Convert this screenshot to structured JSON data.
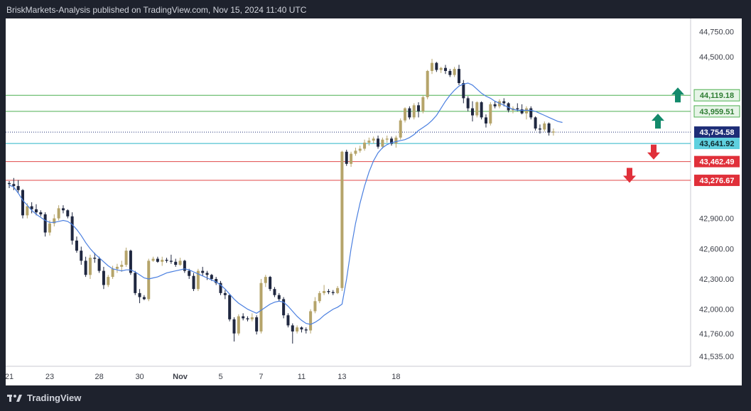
{
  "header": {
    "publisher_line": "BriskMarkets-Analysis published on TradingView.com, Nov 15, 2024 11:40 UTC"
  },
  "footer": {
    "brand": "TradingView"
  },
  "colors": {
    "background_outer": "#1e222d",
    "candle_up": "#b5a46a",
    "candle_down": "#1f2740",
    "moving_average": "#4a7fe0",
    "resistance": "#4caf50",
    "support": "#e04848",
    "current_price": "#1d2d77",
    "bid_level": "#29b5c8",
    "arrow_up": "#138a6b",
    "arrow_down": "#e0303a"
  },
  "chart_data": {
    "type": "candlestick",
    "title": "",
    "xlabel": "",
    "ylabel": "",
    "ylim": [
      41435,
      44880
    ],
    "y_ticks": [
      "44,750.00",
      "44,500.00",
      "42,900.00",
      "42,600.00",
      "42,300.00",
      "42,000.00",
      "41,760.00",
      "41,535.00"
    ],
    "y_tick_values": [
      44750,
      44500,
      42900,
      42600,
      42300,
      42000,
      41760,
      41535
    ],
    "x_ticks": [
      "21",
      "23",
      "28",
      "30",
      "Nov",
      "5",
      "7",
      "11",
      "13",
      "18"
    ],
    "x_tick_positions": [
      0,
      9,
      20,
      29,
      38,
      47,
      56,
      65,
      74,
      86
    ],
    "ohlc": [
      [
        43250,
        43270,
        43200,
        43240
      ],
      [
        43240,
        43300,
        43180,
        43220
      ],
      [
        43220,
        43280,
        43150,
        43180
      ],
      [
        43180,
        43190,
        42900,
        42930
      ],
      [
        42930,
        43050,
        42900,
        43020
      ],
      [
        43020,
        43060,
        42950,
        42990
      ],
      [
        42990,
        43040,
        42930,
        42960
      ],
      [
        42960,
        42980,
        42920,
        42940
      ],
      [
        42940,
        42960,
        42720,
        42760
      ],
      [
        42760,
        42880,
        42730,
        42850
      ],
      [
        42850,
        42940,
        42820,
        42900
      ],
      [
        42900,
        43030,
        42880,
        43000
      ],
      [
        43000,
        43030,
        42950,
        42980
      ],
      [
        42980,
        42990,
        42900,
        42920
      ],
      [
        42920,
        42960,
        42640,
        42680
      ],
      [
        42680,
        42720,
        42560,
        42580
      ],
      [
        42580,
        42620,
        42440,
        42480
      ],
      [
        42480,
        42520,
        42320,
        42340
      ],
      [
        42340,
        42540,
        42300,
        42510
      ],
      [
        42510,
        42560,
        42460,
        42500
      ],
      [
        42500,
        42520,
        42360,
        42380
      ],
      [
        42380,
        42420,
        42200,
        42240
      ],
      [
        42240,
        42340,
        42220,
        42320
      ],
      [
        42320,
        42430,
        42300,
        42400
      ],
      [
        42400,
        42450,
        42360,
        42420
      ],
      [
        42420,
        42480,
        42370,
        42440
      ],
      [
        42440,
        42610,
        42420,
        42580
      ],
      [
        42580,
        42590,
        42340,
        42360
      ],
      [
        42360,
        42380,
        42140,
        42160
      ],
      [
        42160,
        42200,
        42060,
        42120
      ],
      [
        42120,
        42140,
        42090,
        42100
      ],
      [
        42100,
        42500,
        42080,
        42480
      ],
      [
        42480,
        42520,
        42470,
        42500
      ],
      [
        42500,
        42520,
        42460,
        42470
      ],
      [
        42470,
        42520,
        42430,
        42490
      ],
      [
        42490,
        42510,
        42460,
        42480
      ],
      [
        42480,
        42540,
        42450,
        42470
      ],
      [
        42470,
        42500,
        42420,
        42440
      ],
      [
        42440,
        42510,
        42430,
        42480
      ],
      [
        42480,
        42490,
        42360,
        42380
      ],
      [
        42380,
        42400,
        42300,
        42330
      ],
      [
        42330,
        42360,
        42180,
        42200
      ],
      [
        42200,
        42400,
        42180,
        42380
      ],
      [
        42380,
        42420,
        42330,
        42360
      ],
      [
        42360,
        42380,
        42290,
        42340
      ],
      [
        42340,
        42350,
        42280,
        42300
      ],
      [
        42300,
        42320,
        42240,
        42260
      ],
      [
        42260,
        42280,
        42140,
        42160
      ],
      [
        42160,
        42190,
        42100,
        42140
      ],
      [
        42140,
        42150,
        41880,
        41900
      ],
      [
        41900,
        41920,
        41680,
        41760
      ],
      [
        41760,
        41950,
        41740,
        41930
      ],
      [
        41930,
        41960,
        41890,
        41910
      ],
      [
        41910,
        41930,
        41880,
        41900
      ],
      [
        41900,
        41960,
        41880,
        41920
      ],
      [
        41920,
        41940,
        41750,
        41780
      ],
      [
        41780,
        42300,
        41760,
        42260
      ],
      [
        42260,
        42340,
        42220,
        42320
      ],
      [
        42320,
        42330,
        42180,
        42200
      ],
      [
        42200,
        42220,
        42120,
        42140
      ],
      [
        42140,
        42160,
        42080,
        42100
      ],
      [
        42100,
        42120,
        41910,
        41940
      ],
      [
        41940,
        41960,
        41820,
        41840
      ],
      [
        41840,
        41860,
        41660,
        41780
      ],
      [
        41780,
        41840,
        41760,
        41820
      ],
      [
        41820,
        41830,
        41770,
        41800
      ],
      [
        41800,
        41820,
        41760,
        41790
      ],
      [
        41790,
        42000,
        41760,
        41980
      ],
      [
        41980,
        42120,
        41960,
        42080
      ],
      [
        42080,
        42180,
        42060,
        42160
      ],
      [
        42160,
        42240,
        42140,
        42180
      ],
      [
        42180,
        42200,
        42150,
        42170
      ],
      [
        42170,
        42190,
        42140,
        42160
      ],
      [
        42160,
        42230,
        42150,
        42210
      ],
      [
        42210,
        43570,
        42180,
        43560
      ],
      [
        43560,
        43580,
        43420,
        43440
      ],
      [
        43440,
        43560,
        43410,
        43540
      ],
      [
        43540,
        43600,
        43520,
        43570
      ],
      [
        43570,
        43620,
        43550,
        43590
      ],
      [
        43590,
        43680,
        43570,
        43650
      ],
      [
        43650,
        43700,
        43620,
        43670
      ],
      [
        43670,
        43710,
        43640,
        43690
      ],
      [
        43690,
        43720,
        43590,
        43610
      ],
      [
        43610,
        43700,
        43590,
        43680
      ],
      [
        43680,
        43720,
        43650,
        43690
      ],
      [
        43690,
        43710,
        43620,
        43640
      ],
      [
        43640,
        43720,
        43600,
        43700
      ],
      [
        43700,
        43890,
        43680,
        43870
      ],
      [
        43870,
        44000,
        43850,
        43990
      ],
      [
        43990,
        44010,
        43880,
        43900
      ],
      [
        43900,
        44040,
        43880,
        44020
      ],
      [
        44020,
        44050,
        43900,
        43960
      ],
      [
        43960,
        44120,
        43940,
        44100
      ],
      [
        44100,
        44370,
        44080,
        44360
      ],
      [
        44360,
        44480,
        44330,
        44440
      ],
      [
        44440,
        44450,
        44350,
        44370
      ],
      [
        44370,
        44400,
        44340,
        44390
      ],
      [
        44390,
        44420,
        44330,
        44360
      ],
      [
        44360,
        44380,
        44300,
        44320
      ],
      [
        44320,
        44400,
        44300,
        44380
      ],
      [
        44380,
        44420,
        44220,
        44240
      ],
      [
        44240,
        44270,
        44040,
        44090
      ],
      [
        44090,
        44110,
        43960,
        43990
      ],
      [
        43990,
        44060,
        43860,
        43920
      ],
      [
        43920,
        44060,
        43900,
        44050
      ],
      [
        44050,
        44060,
        43880,
        43900
      ],
      [
        43900,
        43930,
        43800,
        43840
      ],
      [
        43840,
        44050,
        43820,
        44030
      ],
      [
        44030,
        44060,
        43990,
        44010
      ],
      [
        44010,
        44080,
        43990,
        44060
      ],
      [
        44060,
        44090,
        44010,
        44040
      ],
      [
        44040,
        44050,
        43950,
        43970
      ],
      [
        43970,
        44010,
        43940,
        43990
      ],
      [
        43990,
        44040,
        43960,
        43980
      ],
      [
        43980,
        44030,
        43930,
        43940
      ],
      [
        43940,
        44010,
        43880,
        43990
      ],
      [
        43990,
        44010,
        43880,
        43900
      ],
      [
        43900,
        43910,
        43770,
        43790
      ],
      [
        43790,
        43830,
        43740,
        43780
      ],
      [
        43780,
        43860,
        43760,
        43840
      ],
      [
        43840,
        43850,
        43720,
        43750
      ],
      [
        43750,
        43790,
        43720,
        43760
      ]
    ],
    "moving_average": [
      43230,
      43210,
      43150,
      43080,
      43030,
      42980,
      42940,
      42910,
      42880,
      42860,
      42860,
      42870,
      42880,
      42870,
      42840,
      42790,
      42730,
      42660,
      42600,
      42550,
      42510,
      42470,
      42430,
      42400,
      42390,
      42380,
      42390,
      42390,
      42370,
      42340,
      42310,
      42300,
      42310,
      42320,
      42340,
      42360,
      42370,
      42380,
      42390,
      42400,
      42390,
      42370,
      42350,
      42330,
      42310,
      42290,
      42270,
      42240,
      42200,
      42150,
      42100,
      42060,
      42030,
      42000,
      41980,
      41960,
      41990,
      42020,
      42050,
      42070,
      42080,
      42070,
      42030,
      41980,
      41930,
      41890,
      41860,
      41850,
      41870,
      41900,
      41940,
      41970,
      42000,
      42020,
      42050,
      42300,
      42600,
      42850,
      43050,
      43220,
      43360,
      43470,
      43550,
      43600,
      43630,
      43650,
      43660,
      43670,
      43680,
      43700,
      43730,
      43770,
      43800,
      43830,
      43870,
      43920,
      43990,
      44060,
      44120,
      44170,
      44210,
      44230,
      44240,
      44220,
      44180,
      44140,
      44110,
      44090,
      44060,
      44040,
      44020,
      44000,
      43980,
      43970,
      43970,
      43970,
      43970,
      43960,
      43940,
      43920,
      43900,
      43880,
      43860,
      43850
    ],
    "levels": [
      {
        "name": "resistance-2",
        "value": 44119.18,
        "label": "44,119.18",
        "kind": "resistance"
      },
      {
        "name": "resistance-1",
        "value": 43959.51,
        "label": "43,959.51",
        "kind": "resistance"
      },
      {
        "name": "current-price",
        "value": 43754.58,
        "label": "43,754.58",
        "kind": "current"
      },
      {
        "name": "bid-level",
        "value": 43641.92,
        "label": "43,641.92",
        "kind": "bid"
      },
      {
        "name": "support-1",
        "value": 43462.49,
        "label": "43,462.49",
        "kind": "support"
      },
      {
        "name": "support-2",
        "value": 43276.67,
        "label": "43,276.67",
        "kind": "support"
      }
    ],
    "arrows": [
      {
        "name": "arrow-up-upper",
        "direction": "up",
        "price": 44119.18
      },
      {
        "name": "arrow-up-lower",
        "direction": "up",
        "price": 43860
      },
      {
        "name": "arrow-down-upper",
        "direction": "down",
        "price": 43560
      },
      {
        "name": "arrow-down-lower",
        "direction": "down",
        "price": 43330
      }
    ],
    "grid": false
  }
}
